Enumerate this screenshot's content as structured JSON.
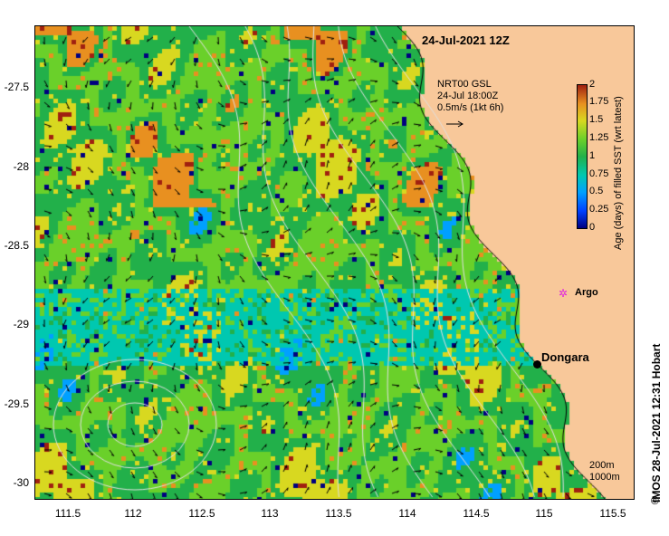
{
  "title": "24-Jul-2021 12Z",
  "vector_legend": {
    "line1": "NRT00 GSL",
    "line2": "24-Jul 18:00Z",
    "line3": "0.5m/s (1kt 6h)"
  },
  "colorbar": {
    "title": "Age (days) of filled SST (wrt latest)",
    "ticks": [
      "2",
      "1.75",
      "1.5",
      "1.25",
      "1",
      "0.75",
      "0.5",
      "0.25",
      "0"
    ],
    "min": 0,
    "max": 2
  },
  "y_ticks": [
    "-27.5",
    "-28",
    "-28.5",
    "-29",
    "-29.5",
    "-30"
  ],
  "x_ticks": [
    "111.5",
    "112",
    "112.5",
    "113",
    "113.5",
    "114",
    "114.5",
    "115",
    "115.5"
  ],
  "markers": {
    "argo": "Argo",
    "dongara": "Dongara"
  },
  "contour_legend": {
    "depth1": "200m",
    "depth2": "1000m"
  },
  "credit": "IMOS 28-Jul-2021 12:31 Hobart",
  "copyright_symbol": "©",
  "colors": {
    "land": "#f8c89a",
    "arrow": "#000000",
    "contour": "#e0e0e0",
    "argo": "#e020e0"
  }
}
